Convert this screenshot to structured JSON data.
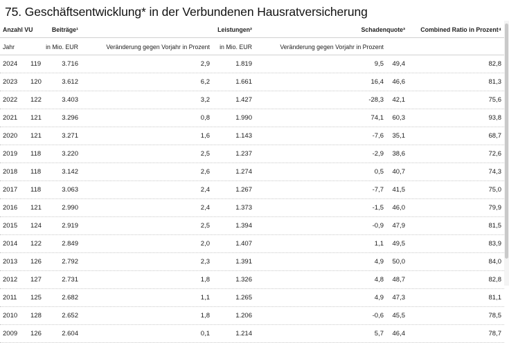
{
  "title": "75. Geschäftsentwicklung* in der Verbundenen Hausratversicherung",
  "header": {
    "anzahl": "Anzahl VU",
    "beitraege": "Beiträge¹",
    "leistungen": "Leistungen²",
    "schadenquote": "Schadenquote³",
    "combined": "Combined Ratio in Prozent⁴"
  },
  "subheader": {
    "jahr": "Jahr",
    "beitr_unit": "in Mio. EUR",
    "beitr_change": "Veränderung gegen Vorjahr in Prozent",
    "leist_unit": "in Mio. EUR",
    "leist_change": "Veränderung gegen Vorjahr in Prozent"
  },
  "rows": [
    {
      "jahr": "2024",
      "vu": "119",
      "beitr": "3.716",
      "beitr_v": "2,9",
      "leist": "1.819",
      "leist_v": "9,5",
      "sq": "49,4",
      "cr": "82,8"
    },
    {
      "jahr": "2023",
      "vu": "120",
      "beitr": "3.612",
      "beitr_v": "6,2",
      "leist": "1.661",
      "leist_v": "16,4",
      "sq": "46,6",
      "cr": "81,3"
    },
    {
      "jahr": "2022",
      "vu": "122",
      "beitr": "3.403",
      "beitr_v": "3,2",
      "leist": "1.427",
      "leist_v": "-28,3",
      "sq": "42,1",
      "cr": "75,6"
    },
    {
      "jahr": "2021",
      "vu": "121",
      "beitr": "3.296",
      "beitr_v": "0,8",
      "leist": "1.990",
      "leist_v": "74,1",
      "sq": "60,3",
      "cr": "93,8"
    },
    {
      "jahr": "2020",
      "vu": "121",
      "beitr": "3.271",
      "beitr_v": "1,6",
      "leist": "1.143",
      "leist_v": "-7,6",
      "sq": "35,1",
      "cr": "68,7"
    },
    {
      "jahr": "2019",
      "vu": "118",
      "beitr": "3.220",
      "beitr_v": "2,5",
      "leist": "1.237",
      "leist_v": "-2,9",
      "sq": "38,6",
      "cr": "72,6"
    },
    {
      "jahr": "2018",
      "vu": "118",
      "beitr": "3.142",
      "beitr_v": "2,6",
      "leist": "1.274",
      "leist_v": "0,5",
      "sq": "40,7",
      "cr": "74,3"
    },
    {
      "jahr": "2017",
      "vu": "118",
      "beitr": "3.063",
      "beitr_v": "2,4",
      "leist": "1.267",
      "leist_v": "-7,7",
      "sq": "41,5",
      "cr": "75,0"
    },
    {
      "jahr": "2016",
      "vu": "121",
      "beitr": "2.990",
      "beitr_v": "2,4",
      "leist": "1.373",
      "leist_v": "-1,5",
      "sq": "46,0",
      "cr": "79,9"
    },
    {
      "jahr": "2015",
      "vu": "124",
      "beitr": "2.919",
      "beitr_v": "2,5",
      "leist": "1.394",
      "leist_v": "-0,9",
      "sq": "47,9",
      "cr": "81,5"
    },
    {
      "jahr": "2014",
      "vu": "122",
      "beitr": "2.849",
      "beitr_v": "2,0",
      "leist": "1.407",
      "leist_v": "1,1",
      "sq": "49,5",
      "cr": "83,9"
    },
    {
      "jahr": "2013",
      "vu": "126",
      "beitr": "2.792",
      "beitr_v": "2,3",
      "leist": "1.391",
      "leist_v": "4,9",
      "sq": "50,0",
      "cr": "84,0"
    },
    {
      "jahr": "2012",
      "vu": "127",
      "beitr": "2.731",
      "beitr_v": "1,8",
      "leist": "1.326",
      "leist_v": "4,8",
      "sq": "48,7",
      "cr": "82,8"
    },
    {
      "jahr": "2011",
      "vu": "125",
      "beitr": "2.682",
      "beitr_v": "1,1",
      "leist": "1.265",
      "leist_v": "4,9",
      "sq": "47,3",
      "cr": "81,1"
    },
    {
      "jahr": "2010",
      "vu": "128",
      "beitr": "2.652",
      "beitr_v": "1,8",
      "leist": "1.206",
      "leist_v": "-0,6",
      "sq": "45,5",
      "cr": "78,5"
    },
    {
      "jahr": "2009",
      "vu": "126",
      "beitr": "2.604",
      "beitr_v": "0,1",
      "leist": "1.214",
      "leist_v": "5,7",
      "sq": "46,4",
      "cr": "78,7"
    }
  ]
}
